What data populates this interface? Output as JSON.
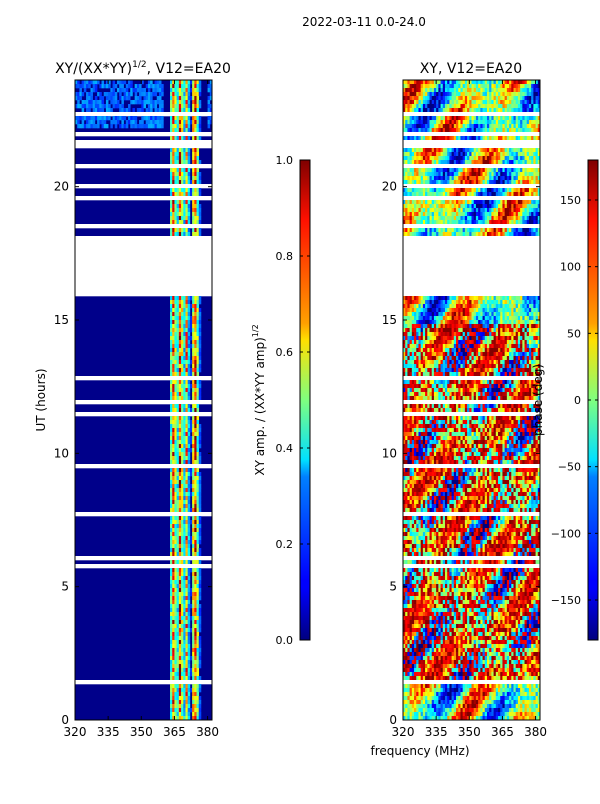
{
  "figure_title": "2022-03-11 0.0-24.0",
  "chart_data": [
    {
      "type": "heatmap",
      "title": "XY/(XX*YY)^1/2, V12=EA20",
      "title_main": "XY/(XX*YY)",
      "title_sup": "1/2",
      "title_tail": ", V12=EA20",
      "xlabel": "",
      "ylabel": "UT (hours)",
      "xlim": [
        320,
        382
      ],
      "ylim": [
        0,
        24
      ],
      "x_ticks": [
        320,
        335,
        350,
        365,
        380
      ],
      "y_ticks": [
        0,
        5,
        10,
        15,
        20
      ],
      "colorbar": {
        "label": "XY amp. / (XX*YY amp)^1/2",
        "label_main": "XY amp. / (XX*YY amp)",
        "label_sup": "1/2",
        "range": [
          0.0,
          1.0
        ],
        "ticks": [
          "0.0",
          "0.2",
          "0.4",
          "0.6",
          "0.8",
          "1.0"
        ],
        "tick_values": [
          0.0,
          0.2,
          0.4,
          0.6,
          0.8,
          1.0
        ]
      },
      "no_data_hours": [
        [
          15.9,
          18.1
        ]
      ]
    },
    {
      "type": "heatmap",
      "title": "XY, V12=EA20",
      "xlabel": "frequency (MHz)",
      "ylabel": "",
      "xlim": [
        320,
        382
      ],
      "ylim": [
        0,
        24
      ],
      "x_ticks": [
        320,
        335,
        350,
        365,
        380
      ],
      "y_ticks": [
        0,
        5,
        10,
        15,
        20
      ],
      "colorbar": {
        "label": "phase (deg)",
        "range": [
          -180,
          180
        ],
        "ticks": [
          "150",
          "100",
          "50",
          "0",
          "−50",
          "−100",
          "−150"
        ],
        "tick_values": [
          150,
          100,
          50,
          0,
          -50,
          -100,
          -150
        ]
      },
      "no_data_hours": [
        [
          15.9,
          18.1
        ]
      ]
    }
  ]
}
